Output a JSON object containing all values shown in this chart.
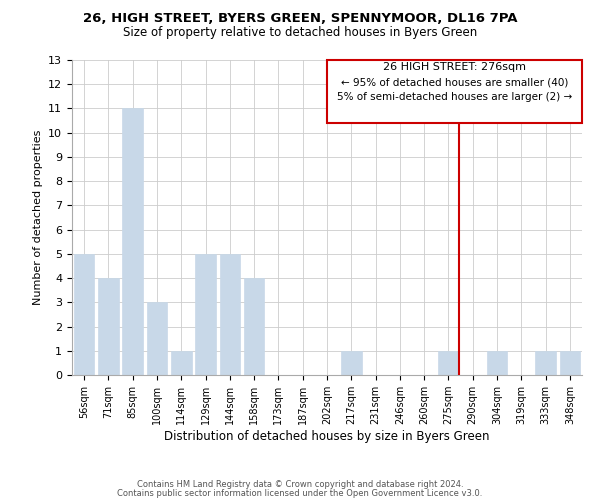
{
  "title1": "26, HIGH STREET, BYERS GREEN, SPENNYMOOR, DL16 7PA",
  "title2": "Size of property relative to detached houses in Byers Green",
  "xlabel": "Distribution of detached houses by size in Byers Green",
  "ylabel": "Number of detached properties",
  "bar_labels": [
    "56sqm",
    "71sqm",
    "85sqm",
    "100sqm",
    "114sqm",
    "129sqm",
    "144sqm",
    "158sqm",
    "173sqm",
    "187sqm",
    "202sqm",
    "217sqm",
    "231sqm",
    "246sqm",
    "260sqm",
    "275sqm",
    "290sqm",
    "304sqm",
    "319sqm",
    "333sqm",
    "348sqm"
  ],
  "bar_values": [
    5,
    4,
    11,
    3,
    1,
    5,
    5,
    4,
    0,
    0,
    0,
    1,
    0,
    0,
    0,
    1,
    0,
    1,
    0,
    1,
    1
  ],
  "bar_color": "#c8d8e8",
  "bar_edge_color": "#c8d8e8",
  "subject_line_index": 15,
  "subject_line_color": "#cc0000",
  "ylim": [
    0,
    13
  ],
  "yticks": [
    0,
    1,
    2,
    3,
    4,
    5,
    6,
    7,
    8,
    9,
    10,
    11,
    12,
    13
  ],
  "annotation_title": "26 HIGH STREET: 276sqm",
  "annotation_line1": "← 95% of detached houses are smaller (40)",
  "annotation_line2": "5% of semi-detached houses are larger (2) →",
  "annotation_box_color": "#cc0000",
  "footer1": "Contains HM Land Registry data © Crown copyright and database right 2024.",
  "footer2": "Contains public sector information licensed under the Open Government Licence v3.0.",
  "background_color": "#ffffff",
  "grid_color": "#cccccc"
}
